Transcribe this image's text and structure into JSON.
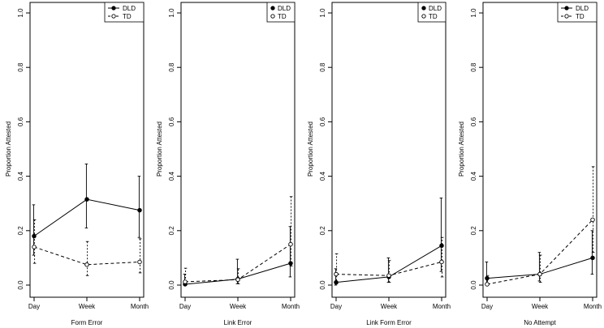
{
  "chart_data": [
    {
      "type": "line",
      "xlabel": "Form Error",
      "ylabel": "Proportion Attested",
      "categories": [
        "Day",
        "Week",
        "Month"
      ],
      "ylim": [
        0,
        1
      ],
      "yticks": [
        "0.0",
        "0.2",
        "0.4",
        "0.6",
        "0.8",
        "1.0"
      ],
      "legend": {
        "placement": "top-right",
        "lines": true
      },
      "series": [
        {
          "name": "DLD",
          "values": [
            0.18,
            0.315,
            0.275
          ],
          "lower": [
            0.11,
            0.21,
            0.175
          ],
          "upper": [
            0.295,
            0.445,
            0.4
          ],
          "marker": "filled",
          "dash": "solid"
        },
        {
          "name": "TD",
          "values": [
            0.14,
            0.075,
            0.085
          ],
          "lower": [
            0.08,
            0.035,
            0.045
          ],
          "upper": [
            0.24,
            0.16,
            0.17
          ],
          "marker": "open",
          "dash": "dashed"
        }
      ]
    },
    {
      "type": "line",
      "xlabel": "Link Error",
      "ylabel": "Proportion Attested",
      "categories": [
        "Day",
        "Week",
        "Month"
      ],
      "ylim": [
        0,
        1
      ],
      "yticks": [
        "0.0",
        "0.2",
        "0.4",
        "0.6",
        "0.8",
        "1.0"
      ],
      "legend": {
        "placement": "top-right",
        "lines": false
      },
      "series": [
        {
          "name": "DLD",
          "values": [
            0.003,
            0.022,
            0.08
          ],
          "lower": [
            0.0,
            0.005,
            0.03
          ],
          "upper": [
            0.04,
            0.095,
            0.215
          ],
          "marker": "filled",
          "dash": "solid"
        },
        {
          "name": "TD",
          "values": [
            0.012,
            0.02,
            0.15
          ],
          "lower": [
            0.0,
            0.005,
            0.07
          ],
          "upper": [
            0.062,
            0.06,
            0.325
          ],
          "marker": "open",
          "dash": "dashed"
        }
      ]
    },
    {
      "type": "line",
      "xlabel": "Link Form Error",
      "ylabel": "Proportion Attested",
      "categories": [
        "Day",
        "Week",
        "Month"
      ],
      "ylim": [
        0,
        1
      ],
      "yticks": [
        "0.0",
        "0.2",
        "0.4",
        "0.6",
        "0.8",
        "1.0"
      ],
      "legend": {
        "placement": "top-right",
        "lines": false
      },
      "series": [
        {
          "name": "DLD",
          "values": [
            0.01,
            0.03,
            0.145
          ],
          "lower": [
            0.0,
            0.01,
            0.05
          ],
          "upper": [
            0.06,
            0.1,
            0.32
          ],
          "marker": "filled",
          "dash": "solid"
        },
        {
          "name": "TD",
          "values": [
            0.04,
            0.035,
            0.085
          ],
          "lower": [
            0.005,
            0.01,
            0.03
          ],
          "upper": [
            0.115,
            0.09,
            0.175
          ],
          "marker": "open",
          "dash": "dashed"
        }
      ]
    },
    {
      "type": "line",
      "xlabel": "No Attempt",
      "ylabel": "Proportion Attested",
      "categories": [
        "Day",
        "Week",
        "Month"
      ],
      "ylim": [
        0,
        1
      ],
      "yticks": [
        "0.0",
        "0.2",
        "0.4",
        "0.6",
        "0.8",
        "1.0"
      ],
      "legend": {
        "placement": "top-right",
        "lines": true
      },
      "series": [
        {
          "name": "DLD",
          "values": [
            0.025,
            0.04,
            0.1
          ],
          "lower": [
            0.005,
            0.015,
            0.04
          ],
          "upper": [
            0.085,
            0.12,
            0.2
          ],
          "marker": "filled",
          "dash": "solid"
        },
        {
          "name": "TD",
          "values": [
            0.003,
            0.04,
            0.24
          ],
          "lower": [
            0.0,
            0.01,
            0.12
          ],
          "upper": [
            0.035,
            0.11,
            0.435
          ],
          "marker": "open",
          "dash": "dashed"
        }
      ]
    }
  ]
}
